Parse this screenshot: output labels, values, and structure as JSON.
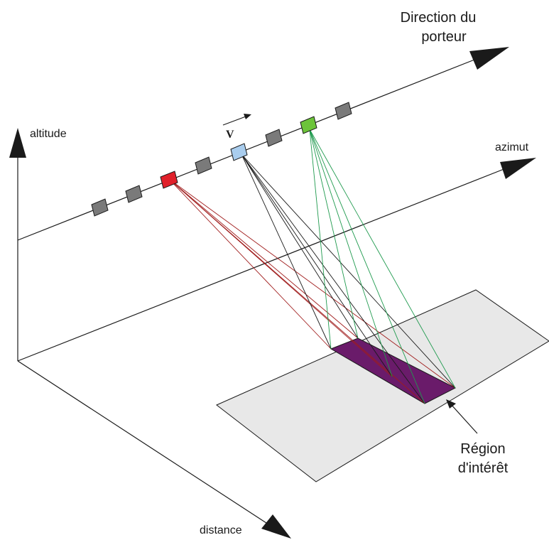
{
  "labels": {
    "direction_line1": "Direction du",
    "direction_line2": "porteur",
    "altitude": "altitude",
    "azimut": "azimut",
    "distance": "distance",
    "velocity": "V",
    "region_line1": "Région",
    "region_line2": "d'intérêt"
  },
  "colors": {
    "axis": "#1a1a1a",
    "inactive_antenna": "#7a7a7a",
    "antenna_red": "#e0202a",
    "antenna_blue": "#a9cdee",
    "antenna_green": "#6cc43a",
    "beam_red": "#a01c1c",
    "beam_black": "#1a1a1a",
    "beam_green": "#1f9a4e",
    "ground": "#e8e8e8",
    "region": "#6a1b6a"
  },
  "icons": {
    "arrowheads": "filled-triangle",
    "antenna": "parallelogram"
  }
}
